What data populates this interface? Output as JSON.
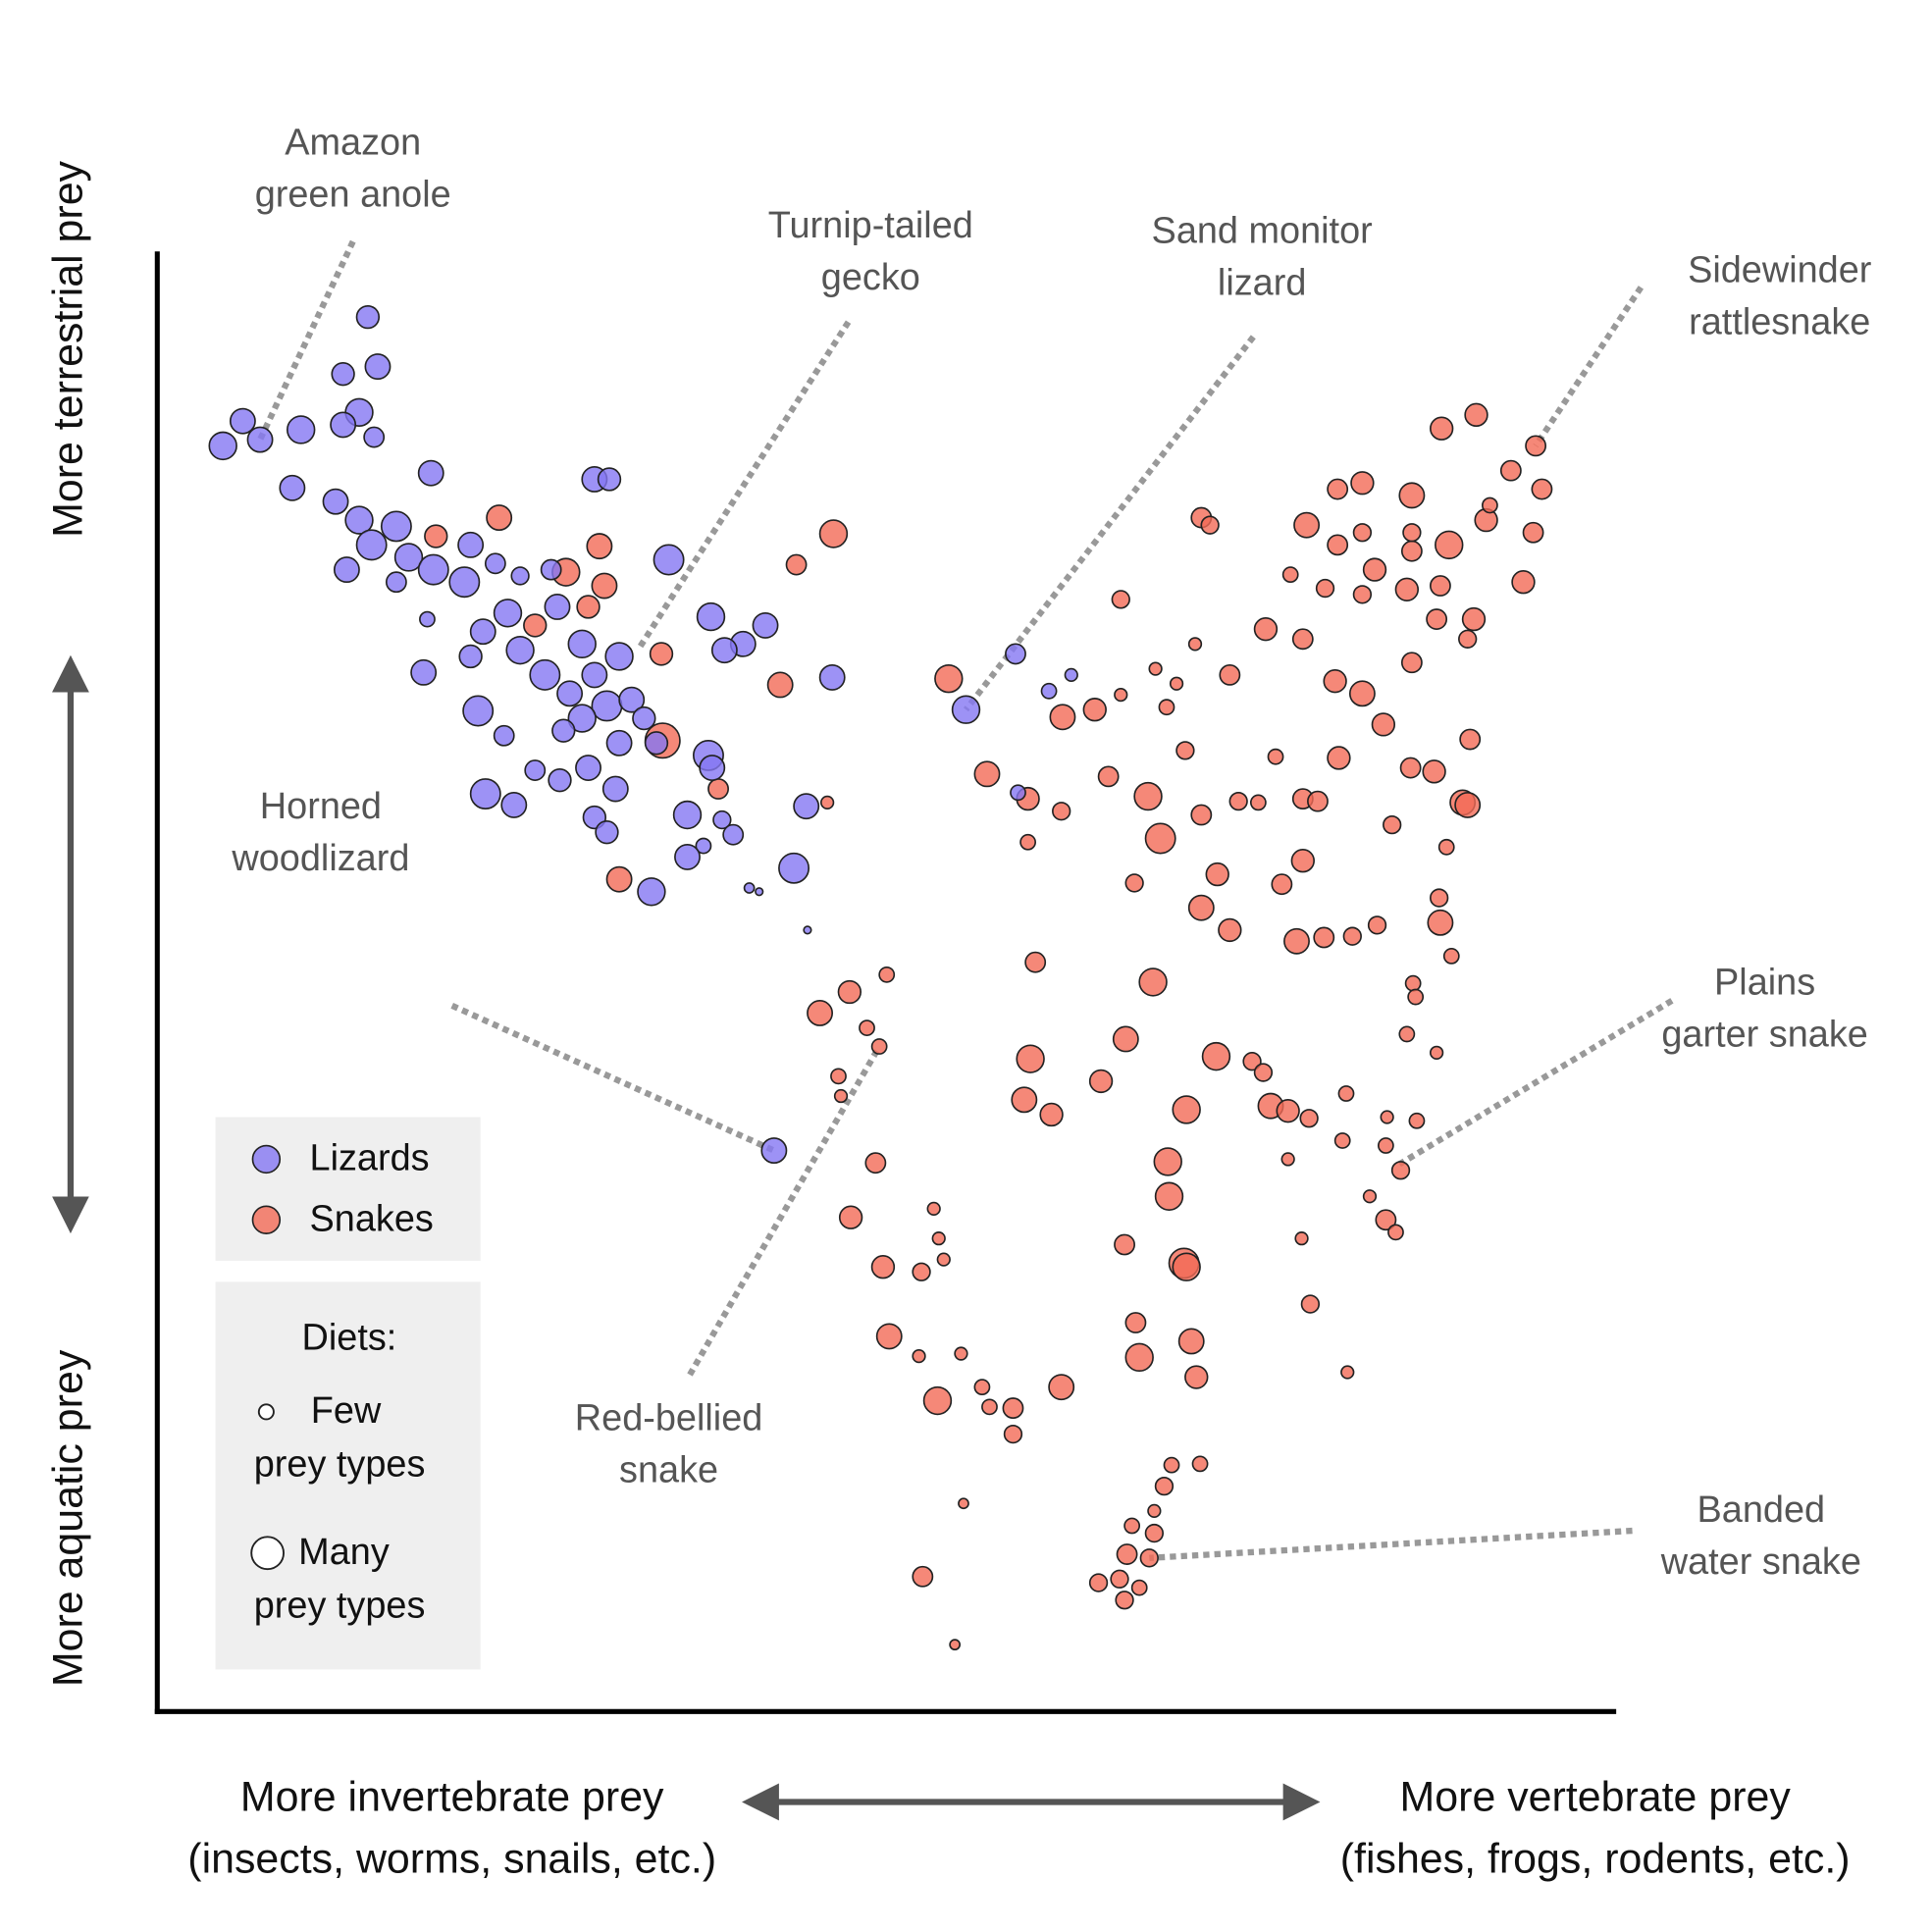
{
  "chart_data": {
    "type": "scatter",
    "xlim": [
      0,
      1178
    ],
    "ylim": [
      0,
      1177
    ],
    "y_label_top": "More terrestrial prey",
    "y_label_bottom": "More aquatic prey",
    "x_label_left": [
      "More invertebrate prey",
      "(insects, worms, snails, etc.)"
    ],
    "x_label_right": [
      "More vertebrate prey",
      "(fishes, frogs, rodents, etc.)"
    ],
    "size_legend": {
      "title": "Diets:",
      "few": [
        "Few",
        "prey types"
      ],
      "many": [
        "Many",
        "prey types"
      ]
    },
    "series": [
      {
        "name": "Snakes",
        "color": "#f26a56",
        "x": [
          276,
          225,
          357,
          330,
          361,
          348,
          305,
          408,
          407,
          503,
          546,
          516,
          541,
          373,
          453,
          639,
          731,
          757,
          778,
          670,
          703,
          730,
          768,
          800,
          703,
          810,
          789,
          843,
          866,
          830,
          815,
          806,
          823,
          838,
          866,
          843,
          850,
          778,
          843,
          873,
          889,
          856,
          903,
          925,
          908,
          925,
          954,
          937,
          920,
          942,
          965,
          985,
          997,
          1012,
          1036,
          1045,
          1035,
          1054,
          1060,
          1041,
          1014,
          1016,
          1009,
          1033,
          928,
          953,
          915,
          943,
          895,
          925,
          951,
          973,
          990,
          1013,
          1033,
          1063,
          1043,
          1073,
          1103,
          1013,
          1037,
          1065,
          1113,
          1118,
          1093,
          973,
          953,
          983,
          1009,
          1036,
          1058,
          1058,
          1031,
          973,
          1013,
          973,
          1013,
          1076,
          1111,
          559,
          535,
          589,
          573,
          583,
          550,
          552,
          580,
          560,
          586,
          617,
          627,
          631,
          635,
          591,
          615,
          649,
          630,
          666,
          672,
          691,
          691,
          651,
          618,
          644,
          709,
          705,
          700,
          722,
          762,
          782,
          804,
          855,
          884,
          893,
          899,
          913,
          930,
          960,
          957,
          993,
          992,
          1017,
          1004,
          961,
          979,
          992,
          1000,
          924,
          931,
          816,
          831,
          817,
          829,
          831,
          781,
          913,
          793,
          835,
          839,
          790,
          730,
          819,
          842,
          813,
          805,
          787,
          805,
          783,
          801,
          760,
          777,
          781,
          793
        ],
        "y": [
          964,
          949,
          941,
          920,
          909,
          892,
          877,
          784,
          854,
          829,
          951,
          926,
          734,
          672,
          745,
          834,
          803,
          809,
          821,
          757,
          737,
          727,
          755,
          739,
          702,
          705,
          669,
          649,
          631,
          776,
          811,
          842,
          830,
          862,
          837,
          964,
          958,
          898,
          724,
          735,
          734,
          676,
          771,
          737,
          668,
          687,
          770,
          735,
          622,
          625,
          626,
          635,
          716,
          762,
          637,
          610,
          657,
          734,
          785,
          698,
          588,
          577,
          547,
          532,
          958,
          942,
          918,
          907,
          874,
          866,
          832,
          822,
          797,
          847,
          882,
          882,
          942,
          962,
          912,
          982,
          1036,
          1047,
          1022,
          987,
          1002,
          992,
          987,
          922,
          906,
          909,
          866,
          732,
          759,
          902,
          937,
          952,
          952,
          974,
          952,
          581,
          564,
          595,
          552,
          537,
          513,
          497,
          443,
          399,
          359,
          355,
          406,
          382,
          365,
          303,
          287,
          289,
          251,
          262,
          246,
          245,
          224,
          168,
          109,
          54,
          605,
          527,
          494,
          482,
          509,
          543,
          589,
          529,
          525,
          516,
          489,
          485,
          479,
          499,
          461,
          480,
          457,
          477,
          437,
          274,
          416,
          397,
          387,
          382,
          329,
          444,
          486,
          416,
          362,
          359,
          377,
          446,
          286,
          299,
          270,
          314,
          262,
          199,
          200,
          182,
          162,
          150,
          144,
          127,
          124,
          104,
          107,
          90,
          100
        ],
        "sizes": [
          10,
          9,
          10,
          11,
          10,
          9,
          9,
          14,
          9,
          10,
          11,
          8,
          5,
          10,
          8,
          11,
          10,
          9,
          5,
          10,
          9,
          7,
          8,
          11,
          6,
          12,
          7,
          10,
          9,
          7,
          6,
          5,
          5,
          5,
          8,
          8,
          7,
          7,
          8,
          7,
          6,
          9,
          6,
          8,
          8,
          9,
          9,
          8,
          10,
          8,
          7,
          7,
          7,
          8,
          10,
          6,
          7,
          10,
          8,
          6,
          6,
          6,
          6,
          5,
          10,
          8,
          6,
          7,
          9,
          8,
          9,
          10,
          9,
          8,
          8,
          9,
          11,
          9,
          9,
          10,
          9,
          9,
          8,
          8,
          8,
          9,
          8,
          9,
          9,
          8,
          7,
          10,
          9,
          7,
          8,
          7,
          7,
          6,
          8,
          9,
          10,
          6,
          6,
          6,
          6,
          5,
          8,
          9,
          9,
          7,
          5,
          5,
          5,
          10,
          5,
          5,
          11,
          6,
          6,
          8,
          7,
          4,
          8,
          4,
          8,
          11,
          10,
          9,
          9,
          10,
          11,
          11,
          7,
          7,
          10,
          9,
          7,
          6,
          6,
          5,
          6,
          6,
          7,
          5,
          5,
          8,
          6,
          5,
          7,
          11,
          11,
          11,
          12,
          11,
          8,
          5,
          11,
          10,
          9,
          8,
          10,
          6,
          6,
          7,
          5,
          6,
          7,
          8,
          7,
          7,
          7,
          7,
          6
        ]
      },
      {
        "name": "Lizards",
        "color": "#8577f2",
        "x": [
          170,
          178,
          150,
          163,
          175,
          69,
          53,
          83,
          116,
          150,
          221,
          109,
          353,
          365,
          144,
          163,
          193,
          173,
          153,
          203,
          223,
          253,
          248,
          273,
          293,
          318,
          413,
          323,
          283,
          263,
          253,
          293,
          343,
          313,
          353,
          373,
          447,
          473,
          491,
          458,
          215,
          545,
          333,
          363,
          343,
          383,
          393,
          259,
          280,
          328,
          373,
          403,
          445,
          448,
          305,
          325,
          348,
          265,
          288,
          370,
          353,
          428,
          456,
          465,
          524,
          363,
          441,
          428,
          514,
          399,
          478,
          486,
          525,
          653,
          693,
          720,
          738,
          695,
          498,
          218,
          193
        ],
        "y": [
          1126,
          1086,
          1080,
          1049,
          1029,
          1042,
          1022,
          1027,
          1035,
          1039,
          1000,
          988,
          995,
          995,
          977,
          962,
          957,
          942,
          922,
          932,
          922,
          942,
          912,
          927,
          917,
          922,
          930,
          892,
          887,
          872,
          852,
          857,
          862,
          837,
          837,
          852,
          884,
          862,
          877,
          857,
          839,
          835,
          822,
          812,
          802,
          817,
          802,
          808,
          788,
          792,
          782,
          782,
          772,
          762,
          760,
          752,
          762,
          741,
          732,
          745,
          722,
          724,
          720,
          708,
          731,
          710,
          699,
          690,
          681,
          662,
          665,
          662,
          631,
          809,
          854,
          824,
          837,
          742,
          453,
          882,
          912
        ],
        "sizes": [
          9,
          10,
          9,
          11,
          8,
          10,
          11,
          10,
          11,
          10,
          10,
          10,
          10,
          9,
          10,
          11,
          12,
          12,
          10,
          11,
          12,
          10,
          12,
          8,
          7,
          8,
          12,
          10,
          11,
          10,
          9,
          11,
          11,
          12,
          10,
          11,
          11,
          10,
          10,
          10,
          10,
          10,
          10,
          12,
          11,
          10,
          9,
          12,
          8,
          9,
          10,
          9,
          12,
          10,
          8,
          9,
          10,
          12,
          10,
          10,
          9,
          11,
          7,
          8,
          10,
          9,
          6,
          10,
          12,
          11,
          4,
          3,
          3,
          11,
          8,
          6,
          5,
          6,
          10,
          6,
          8
        ]
      }
    ],
    "annotations": [
      {
        "text": [
          "Amazon",
          "green anole"
        ],
        "x": 83,
        "y": 1027
      },
      {
        "text": [
          "Turnip-tailed",
          "gecko"
        ],
        "x": 388,
        "y": 857
      },
      {
        "text": [
          "Sand monitor",
          "lizard"
        ],
        "x": 653,
        "y": 809
      },
      {
        "text": [
          "Sidewinder",
          "rattlesnake"
        ],
        "x": 1113,
        "y": 1022
      },
      {
        "text": [
          "Horned",
          "woodlizard"
        ],
        "x": 498,
        "y": 453
      },
      {
        "text": [
          "Plains",
          "garter snake"
        ],
        "x": 1003,
        "y": 442
      },
      {
        "text": [
          "Red-bellied",
          "snake"
        ],
        "x": 583,
        "y": 537
      },
      {
        "text": [
          "Banded",
          "water snake"
        ],
        "x": 801,
        "y": 124
      }
    ]
  }
}
